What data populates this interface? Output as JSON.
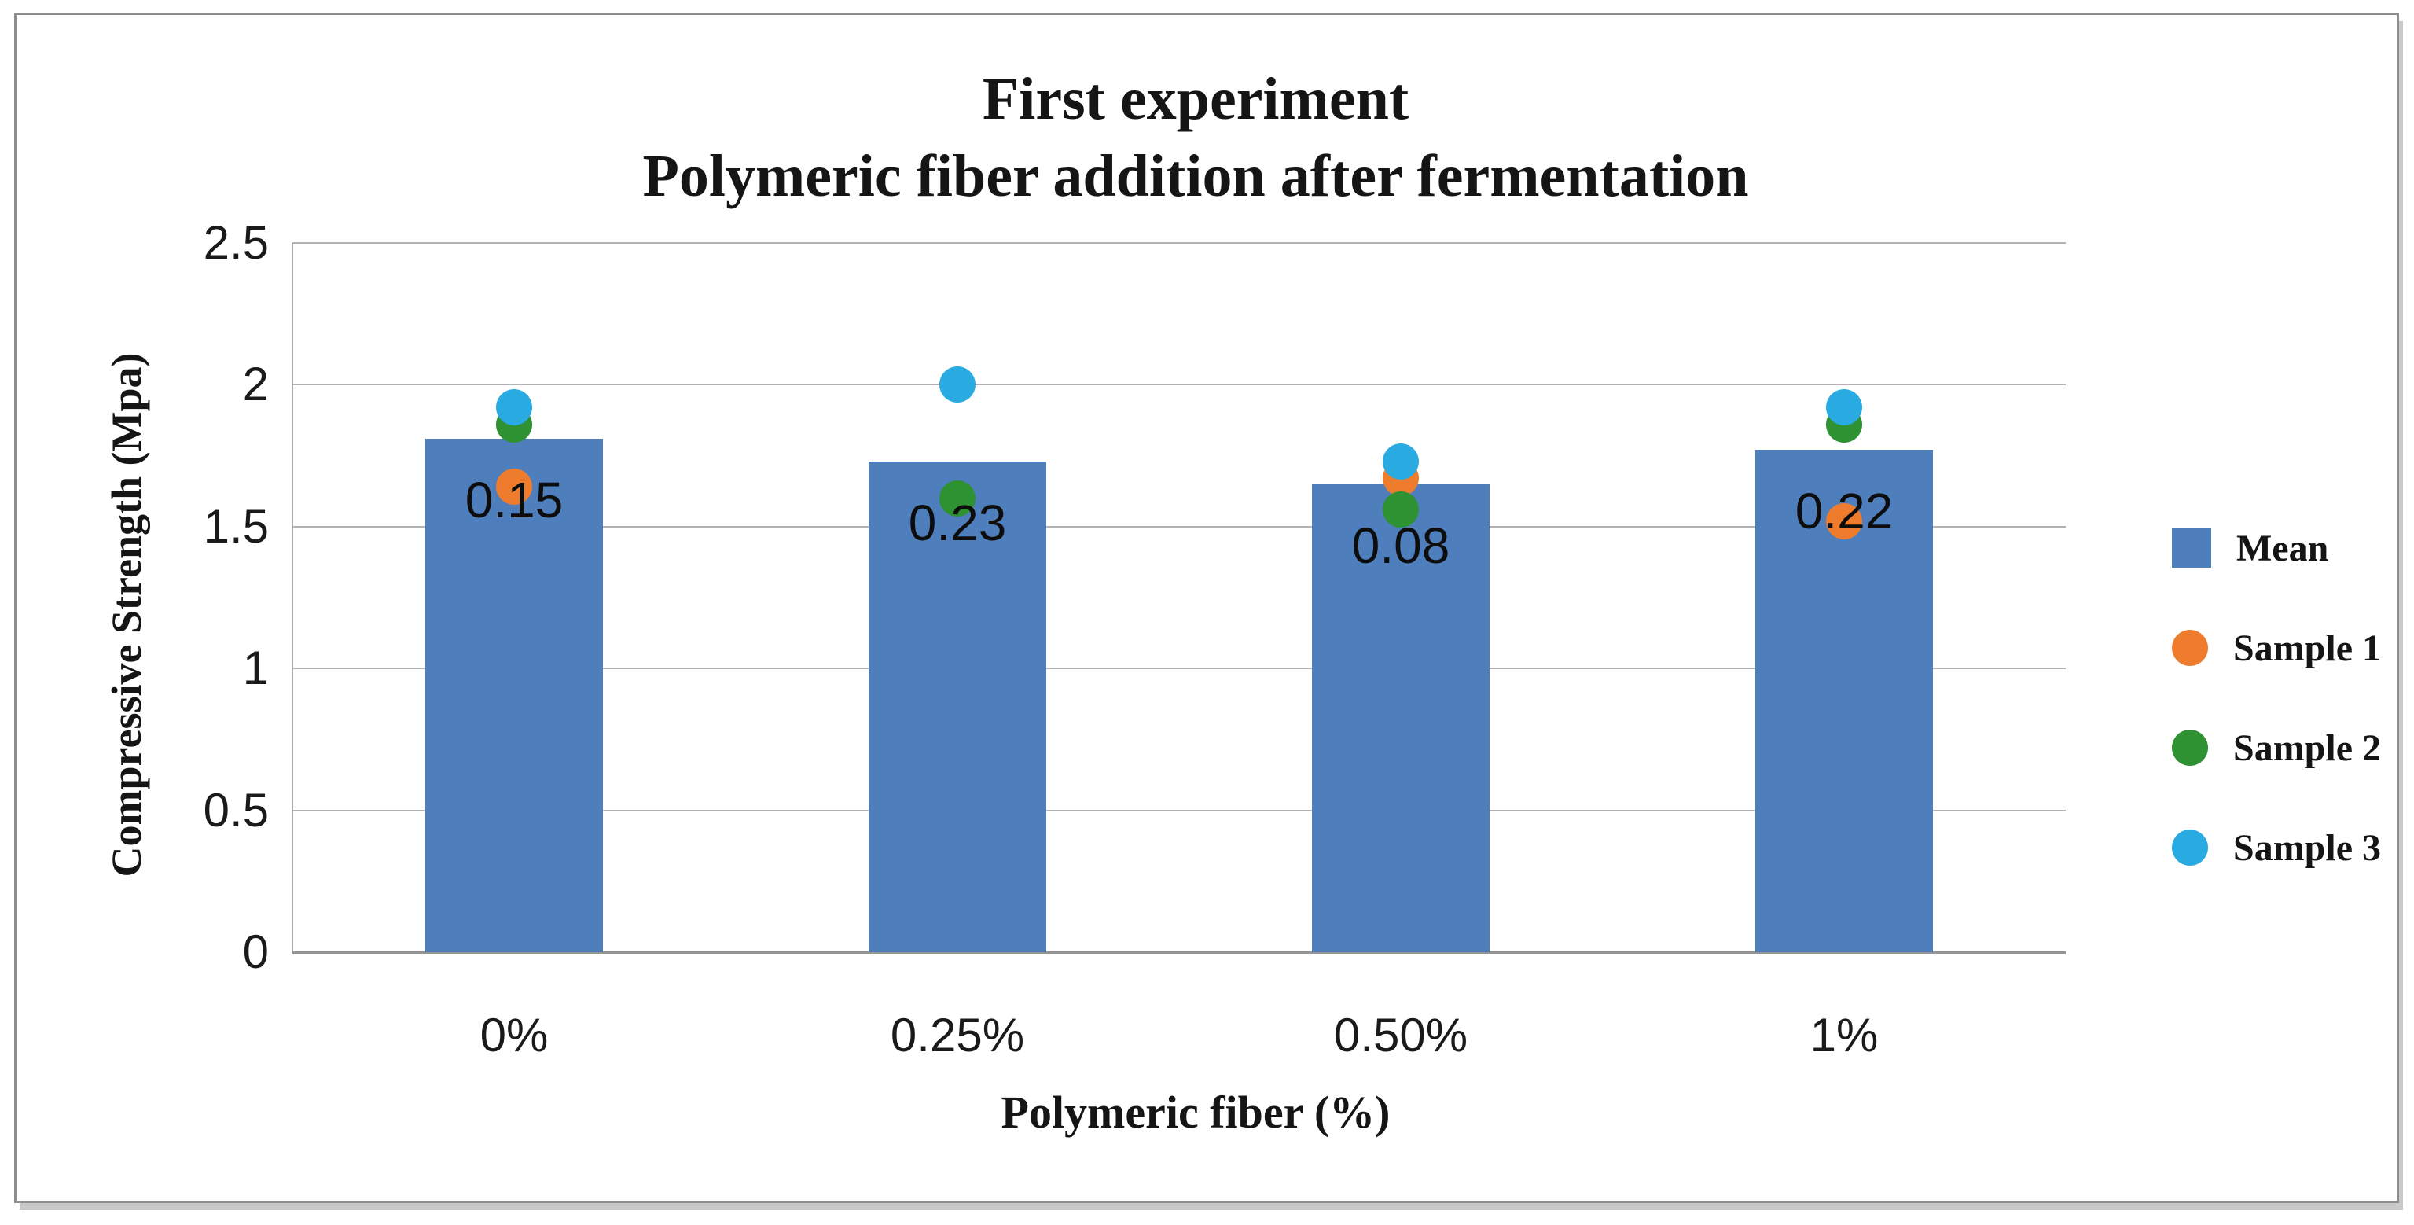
{
  "chart_data": {
    "type": "bar",
    "title_lines": [
      "First experiment",
      "Polymeric fiber addition after fermentation"
    ],
    "xlabel": "Polymeric fiber (%)",
    "ylabel": "Compressive Strength (Mpa)",
    "categories": [
      "0%",
      "0.25%",
      "0.50%",
      "1%"
    ],
    "series": [
      {
        "name": "Mean",
        "kind": "bar",
        "marker": "square",
        "color": "#4e7ebc",
        "values": [
          1.81,
          1.73,
          1.65,
          1.77
        ],
        "bar_labels": [
          "0.15",
          "0.23",
          "0.08",
          "0.22"
        ]
      },
      {
        "name": "Sample 1",
        "kind": "scatter",
        "marker": "circle",
        "color": "#ef7b2d",
        "values": [
          1.64,
          null,
          1.67,
          1.52
        ]
      },
      {
        "name": "Sample 2",
        "kind": "scatter",
        "marker": "circle",
        "color": "#2e9132",
        "values": [
          1.86,
          1.6,
          1.56,
          1.86
        ]
      },
      {
        "name": "Sample 3",
        "kind": "scatter",
        "marker": "circle",
        "color": "#29abe2",
        "values": [
          1.92,
          2.0,
          1.73,
          1.92
        ]
      }
    ],
    "ylim": [
      0,
      2.5
    ],
    "ytick_labels": [
      "0",
      "0.5",
      "1",
      "1.5",
      "2",
      "2.5"
    ],
    "ytick_values": [
      0,
      0.5,
      1,
      1.5,
      2,
      2.5
    ],
    "grid": true,
    "legend_position": "right",
    "colors": {
      "bar": "#4e7ebc",
      "sample1": "#ef7b2d",
      "sample2": "#2e9132",
      "sample3": "#29abe2",
      "gridline": "#b3b3b3",
      "axis": "#949494"
    }
  }
}
